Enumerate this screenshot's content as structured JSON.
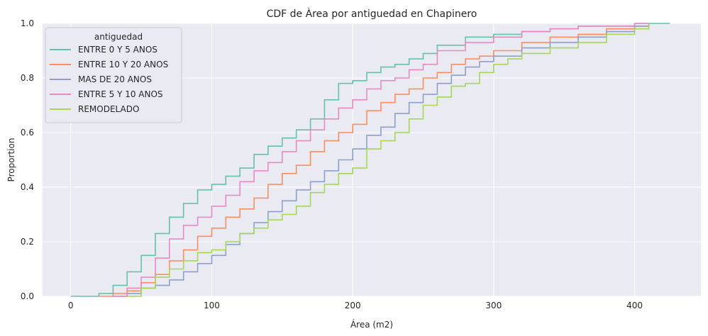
{
  "chart_data": {
    "type": "line",
    "subtype": "ecdf-step",
    "title": "CDF de Àrea por antiguedad en Chapinero",
    "xlabel": "Área (m2)",
    "ylabel": "Proportion",
    "xlim": [
      -20,
      447
    ],
    "ylim": [
      0,
      1
    ],
    "x_ticks": [
      0,
      100,
      200,
      300,
      400
    ],
    "y_ticks": [
      0.0,
      0.2,
      0.4,
      0.6,
      0.8,
      1.0
    ],
    "x_tick_labels": [
      "0",
      "100",
      "200",
      "300",
      "400"
    ],
    "y_tick_labels": [
      "0.0",
      "0.2",
      "0.4",
      "0.6",
      "0.8",
      "1.0"
    ],
    "grid": true,
    "background": "#EAEAF2",
    "legend": {
      "title": "antiguedad",
      "placement": "top-left"
    },
    "series": [
      {
        "name": "ENTRE 0 Y 5 ANOS",
        "color": "#66C2A5",
        "x": [
          0,
          20,
          30,
          40,
          50,
          60,
          70,
          80,
          90,
          100,
          110,
          120,
          130,
          140,
          150,
          160,
          170,
          180,
          190,
          200,
          210,
          220,
          230,
          240,
          250,
          260,
          280,
          300,
          320,
          340,
          360,
          380,
          400,
          425
        ],
        "y": [
          0,
          0.01,
          0.04,
          0.09,
          0.15,
          0.23,
          0.29,
          0.34,
          0.39,
          0.41,
          0.44,
          0.47,
          0.52,
          0.55,
          0.58,
          0.61,
          0.65,
          0.72,
          0.78,
          0.79,
          0.82,
          0.84,
          0.85,
          0.87,
          0.89,
          0.92,
          0.95,
          0.96,
          0.97,
          0.98,
          0.99,
          0.99,
          1.0,
          1.0
        ]
      },
      {
        "name": "ENTRE 10 Y 20 ANOS",
        "color": "#FC8D62",
        "x": [
          20,
          30,
          40,
          50,
          60,
          70,
          80,
          90,
          100,
          110,
          120,
          130,
          140,
          150,
          160,
          170,
          180,
          190,
          200,
          210,
          220,
          230,
          240,
          250,
          260,
          270,
          280,
          290,
          300,
          320,
          340,
          360,
          380,
          400,
          410
        ],
        "y": [
          0,
          0.01,
          0.02,
          0.05,
          0.08,
          0.13,
          0.17,
          0.22,
          0.25,
          0.29,
          0.32,
          0.36,
          0.41,
          0.45,
          0.48,
          0.53,
          0.57,
          0.6,
          0.63,
          0.68,
          0.71,
          0.74,
          0.76,
          0.8,
          0.82,
          0.85,
          0.87,
          0.88,
          0.9,
          0.93,
          0.95,
          0.96,
          0.98,
          0.99,
          1.0
        ]
      },
      {
        "name": "MAS DE 20 ANOS",
        "color": "#8DA0CB",
        "x": [
          30,
          40,
          50,
          60,
          70,
          80,
          90,
          100,
          110,
          120,
          130,
          140,
          150,
          160,
          170,
          180,
          190,
          200,
          210,
          220,
          230,
          240,
          250,
          260,
          270,
          280,
          290,
          300,
          320,
          340,
          360,
          380,
          400,
          410
        ],
        "y": [
          0,
          0.01,
          0.03,
          0.04,
          0.06,
          0.09,
          0.12,
          0.15,
          0.19,
          0.23,
          0.27,
          0.31,
          0.35,
          0.39,
          0.42,
          0.46,
          0.5,
          0.54,
          0.59,
          0.62,
          0.67,
          0.71,
          0.74,
          0.78,
          0.81,
          0.84,
          0.86,
          0.88,
          0.91,
          0.93,
          0.95,
          0.97,
          0.99,
          1.0
        ]
      },
      {
        "name": "ENTRE 5 Y 10 ANOS",
        "color": "#E78AC3",
        "x": [
          30,
          40,
          50,
          60,
          70,
          80,
          90,
          100,
          110,
          120,
          130,
          140,
          150,
          160,
          170,
          180,
          190,
          200,
          210,
          220,
          230,
          240,
          250,
          260,
          280,
          300,
          320,
          340,
          360,
          380,
          400,
          410
        ],
        "y": [
          0,
          0.03,
          0.07,
          0.14,
          0.21,
          0.26,
          0.29,
          0.33,
          0.37,
          0.42,
          0.46,
          0.49,
          0.53,
          0.57,
          0.61,
          0.65,
          0.69,
          0.72,
          0.76,
          0.79,
          0.8,
          0.83,
          0.85,
          0.9,
          0.93,
          0.95,
          0.97,
          0.98,
          0.99,
          0.99,
          1.0,
          1.0
        ]
      },
      {
        "name": "REMODELADO",
        "color": "#A6D854",
        "x": [
          40,
          50,
          60,
          70,
          80,
          90,
          100,
          110,
          120,
          130,
          140,
          150,
          160,
          170,
          180,
          190,
          200,
          210,
          220,
          230,
          240,
          250,
          260,
          270,
          280,
          290,
          300,
          310,
          320,
          340,
          360,
          380,
          400,
          410
        ],
        "y": [
          0,
          0.03,
          0.07,
          0.1,
          0.13,
          0.16,
          0.17,
          0.2,
          0.23,
          0.25,
          0.28,
          0.3,
          0.33,
          0.38,
          0.41,
          0.45,
          0.47,
          0.54,
          0.57,
          0.6,
          0.65,
          0.7,
          0.73,
          0.77,
          0.78,
          0.82,
          0.85,
          0.87,
          0.89,
          0.91,
          0.93,
          0.96,
          0.98,
          1.0
        ]
      }
    ]
  }
}
